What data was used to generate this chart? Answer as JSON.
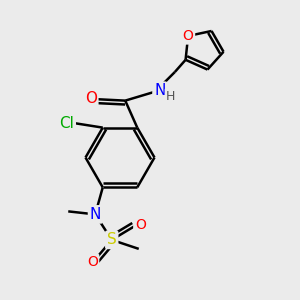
{
  "bg_color": "#ebebeb",
  "atom_colors": {
    "O": "#ff0000",
    "N": "#0000ff",
    "S": "#cccc00",
    "Cl": "#00aa00",
    "C": "#000000",
    "H": "#555555"
  },
  "bond_color": "#000000",
  "bond_width": 1.8,
  "font_size": 10
}
